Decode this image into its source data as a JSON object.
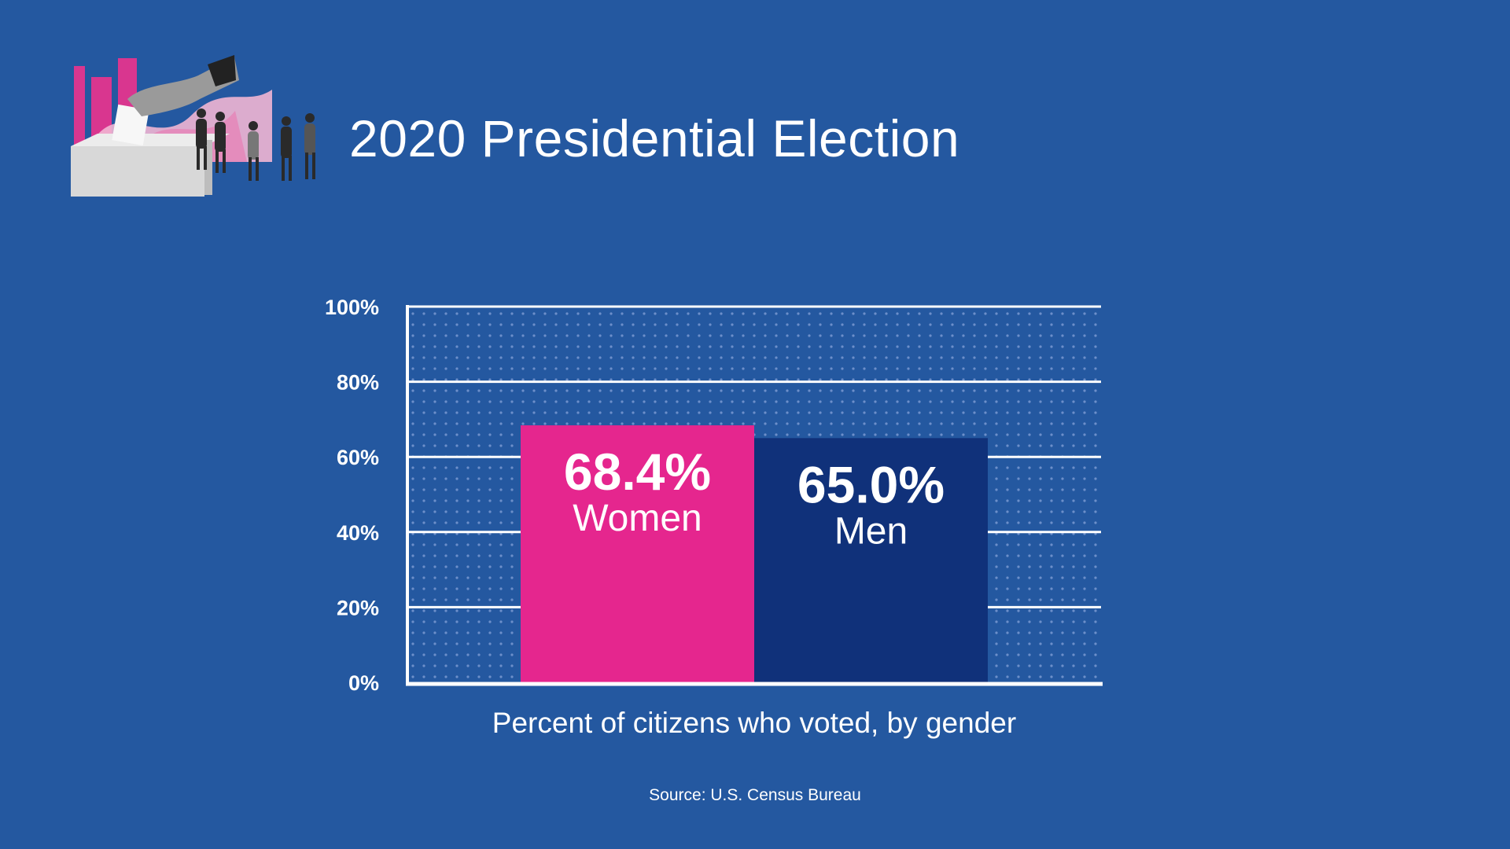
{
  "header": {
    "title": "2020 Presidential Election",
    "illustration_icon": "ballot-box-voters-illustration-icon"
  },
  "chart_data": {
    "type": "bar",
    "categories": [
      "Women",
      "Men"
    ],
    "values": [
      68.4,
      65.0
    ],
    "data_labels": [
      "68.4%",
      "65.0%"
    ],
    "bar_colors": [
      "#e5268e",
      "#10317a"
    ],
    "xlabel": "Percent of citizens who voted, by gender",
    "ylabel": "",
    "ylim": [
      0,
      100
    ],
    "yticks": [
      0,
      20,
      40,
      60,
      80,
      100
    ],
    "ytick_labels": [
      "0%",
      "20%",
      "40%",
      "60%",
      "80%",
      "100%"
    ],
    "grid": true,
    "background_pattern": "dotted"
  },
  "footer": {
    "source": "Source: U.S. Census Bureau"
  },
  "colors": {
    "background": "#2458a0",
    "women": "#e5268e",
    "men": "#10317a",
    "text": "#ffffff"
  }
}
